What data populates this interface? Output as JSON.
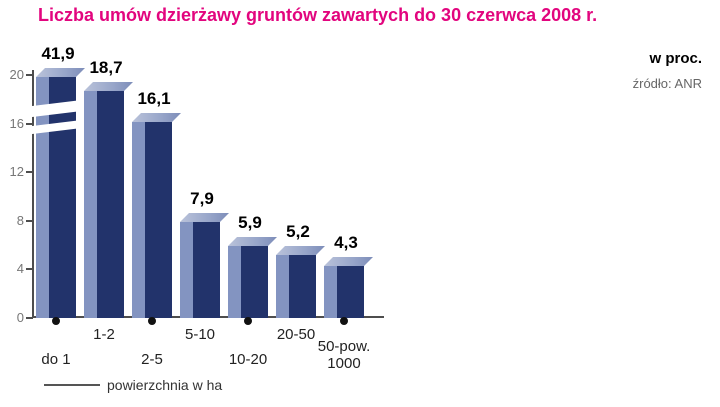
{
  "title": "Liczba umów dzierżawy gruntów zawartych do 30 czerwca 2008 r.",
  "unit_label": "w proc.",
  "source": "źródło: ANR",
  "axis_caption": "powierzchnia w ha",
  "chart_data": {
    "type": "bar",
    "title": "Liczba umów dzierżawy gruntów zawartych do 30 czerwca 2008 r.",
    "unit": "w proc.",
    "source": "źródło: ANR",
    "categories": [
      "do 1",
      "1-2",
      "2-5",
      "5-10",
      "10-20",
      "20-50",
      "50-pow. 1000"
    ],
    "category_lines": [
      [
        "do 1"
      ],
      [
        "1-2"
      ],
      [
        "2-5"
      ],
      [
        "5-10"
      ],
      [
        "10-20"
      ],
      [
        "20-50"
      ],
      [
        "50-pow.",
        "1000"
      ]
    ],
    "values": [
      41.9,
      18.7,
      16.1,
      7.9,
      5.9,
      5.2,
      4.3
    ],
    "value_labels": [
      "41,9",
      "18,7",
      "16,1",
      "7,9",
      "5,9",
      "5,2",
      "4,3"
    ],
    "xlabel": "powierzchnia w ha",
    "ylabel": "w proc.",
    "yticks": [
      0,
      4,
      8,
      12,
      16,
      20
    ],
    "ylim": [
      0,
      20
    ],
    "grid": false,
    "legend_position": "none",
    "axis_break": {
      "bar_index": 0,
      "note": "first bar exceeds axis maximum and is drawn with a broken-bar gap"
    },
    "colors": {
      "title": "#E2057E",
      "bar_front": "#22336B",
      "bar_highlight": "#8394C1",
      "bar_top": "#AEB9D6",
      "axis": "#4D4D4D"
    }
  }
}
